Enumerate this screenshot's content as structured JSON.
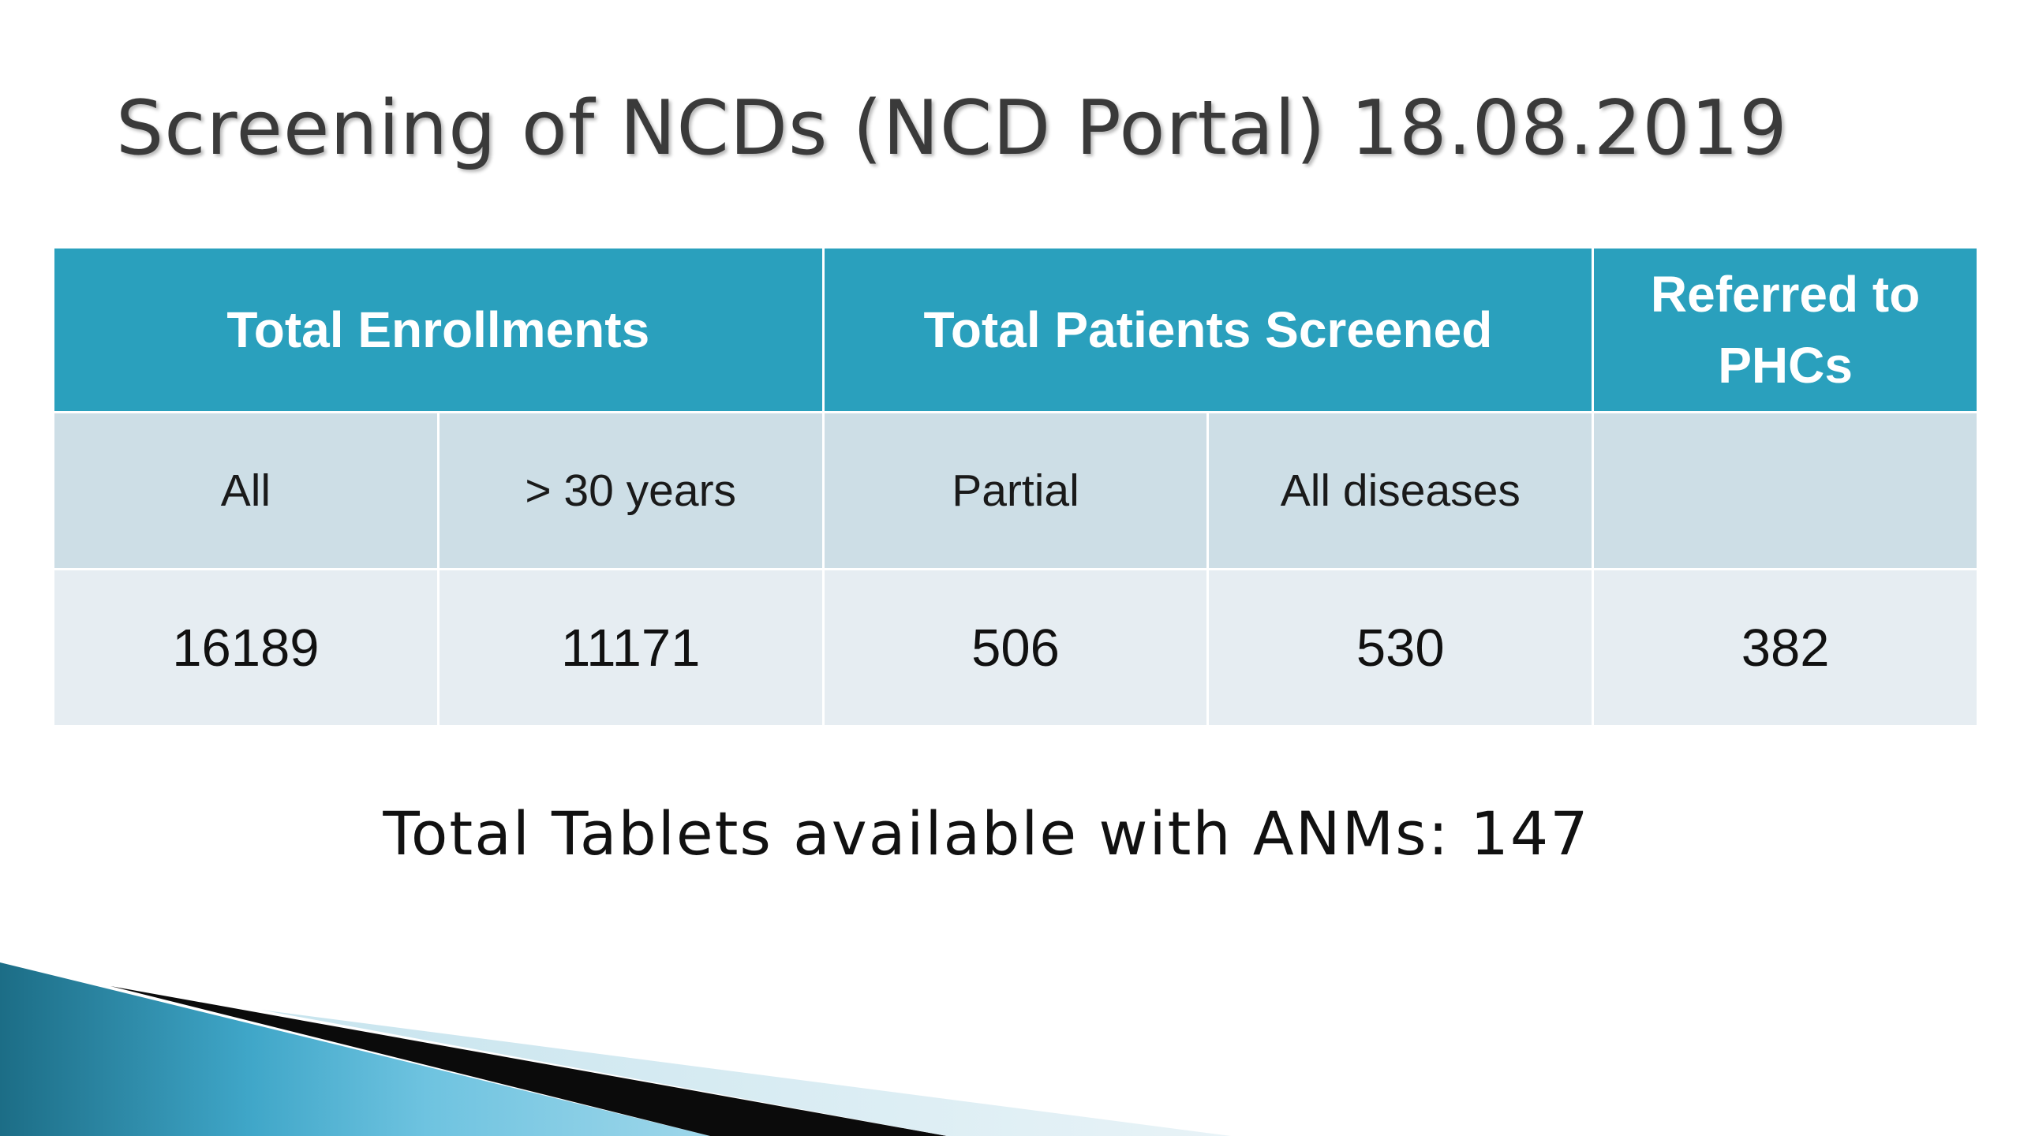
{
  "slide": {
    "title": "Screening of NCDs (NCD Portal) 18.08.2019"
  },
  "table": {
    "headers": {
      "total_enrollments": "Total Enrollments",
      "total_patients_screened": "Total Patients Screened",
      "referred_to_phcs_line1": "Referred to",
      "referred_to_phcs_line2": "PHCs"
    },
    "subheaders": [
      "All",
      "> 30 years",
      "Partial",
      "All diseases",
      ""
    ],
    "values": [
      "16189",
      "11171",
      "506",
      "530",
      "382"
    ]
  },
  "footer": {
    "note": "Total Tablets available with ANMs: 147"
  },
  "colors": {
    "header_bg": "#2aa0bd",
    "subheader_bg": "#cddee6",
    "values_bg": "#e6edf2"
  }
}
